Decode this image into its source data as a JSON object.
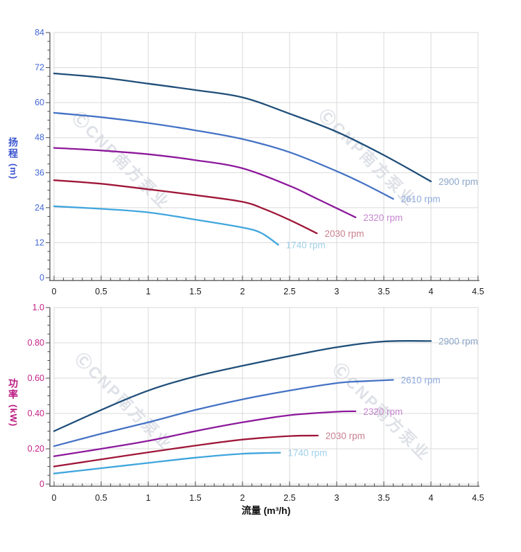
{
  "watermark": {
    "text": "ⒸCNP南方泵业",
    "color": "#aab3c2"
  },
  "axes": {
    "head_title": "扬程",
    "head_unit": "(m)",
    "head_title_color": "#3b55cf",
    "head_tick_color": "#4468d5",
    "power_title": "功率",
    "power_unit": "(kW)",
    "power_title_color": "#bb1880",
    "power_tick_color": "#c41f87",
    "flow_title": "流量 (m³/h)",
    "x_tick_color": "#1a1a1a",
    "grid_color": "#d9d9d9",
    "spine_color": "#474747"
  },
  "chart_data": [
    {
      "type": "line",
      "title": "",
      "xlabel": "流量 (m³/h)",
      "ylabel": "扬程 (m)",
      "xlim": [
        0,
        4.5
      ],
      "ylim": [
        0,
        84
      ],
      "grid": true,
      "legend_position": "curve-end-labels",
      "x_ticks": [
        0,
        0.5,
        1,
        1.5,
        2,
        2.5,
        3,
        3.5,
        4,
        4.5
      ],
      "x_tick_labels": [
        "0",
        "0.5",
        "1",
        "1.5",
        "2",
        "2.5",
        "3",
        "3.5",
        "4",
        "4.5"
      ],
      "x_minor_step": 0.1,
      "y_ticks": [
        0,
        12,
        24,
        36,
        48,
        60,
        72,
        84
      ],
      "y_tick_labels": [
        "0",
        "12",
        "24",
        "36",
        "48",
        "60",
        "72",
        "84"
      ],
      "y_minor_step": 3,
      "y_tick_color": "#4468d5",
      "series": [
        {
          "name": "2900 rpm",
          "color": "#1f4e79",
          "label_color": "#8ba6c9",
          "points": [
            [
              0,
              70
            ],
            [
              0.5,
              68.6
            ],
            [
              1,
              66.5
            ],
            [
              1.5,
              64.3
            ],
            [
              2,
              61.8
            ],
            [
              2.5,
              56.2
            ],
            [
              3,
              50
            ],
            [
              3.5,
              42
            ],
            [
              4,
              33
            ]
          ]
        },
        {
          "name": "2610 rpm",
          "color": "#4472c4",
          "label_color": "#8fa9dc",
          "points": [
            [
              0,
              56.5
            ],
            [
              0.5,
              55
            ],
            [
              1,
              53
            ],
            [
              1.5,
              50.5
            ],
            [
              2,
              47.5
            ],
            [
              2.5,
              43
            ],
            [
              3,
              36.5
            ],
            [
              3.3,
              32
            ],
            [
              3.6,
              27
            ]
          ]
        },
        {
          "name": "2320 rpm",
          "color": "#8c189b",
          "label_color": "#c687cf",
          "points": [
            [
              0,
              44.5
            ],
            [
              0.5,
              43.6
            ],
            [
              1,
              42.3
            ],
            [
              1.5,
              40.3
            ],
            [
              2,
              37.5
            ],
            [
              2.5,
              31.5
            ],
            [
              2.75,
              27.7
            ],
            [
              3,
              23.8
            ],
            [
              3.2,
              20.7
            ]
          ]
        },
        {
          "name": "2030 rpm",
          "color": "#9e1638",
          "label_color": "#c9808f",
          "points": [
            [
              0,
              33.4
            ],
            [
              0.5,
              32.2
            ],
            [
              1,
              30.3
            ],
            [
              1.5,
              28.3
            ],
            [
              2,
              26
            ],
            [
              2.25,
              23.3
            ],
            [
              2.5,
              19.8
            ],
            [
              2.79,
              15.2
            ]
          ]
        },
        {
          "name": "1740 rpm",
          "color": "#3fa5dd",
          "label_color": "#9fd0ea",
          "points": [
            [
              0,
              24.5
            ],
            [
              0.5,
              23.6
            ],
            [
              1,
              22.4
            ],
            [
              1.5,
              19.9
            ],
            [
              2,
              17.2
            ],
            [
              2.2,
              15.3
            ],
            [
              2.38,
              11.3
            ]
          ]
        }
      ]
    },
    {
      "type": "line",
      "title": "",
      "xlabel": "流量 (m³/h)",
      "ylabel": "功率 (kW)",
      "xlim": [
        0,
        4.5
      ],
      "ylim": [
        0,
        1.0
      ],
      "grid": true,
      "legend_position": "curve-end-labels",
      "x_ticks": [
        0,
        0.5,
        1,
        1.5,
        2,
        2.5,
        3,
        3.5,
        4,
        4.5
      ],
      "x_tick_labels": [
        "0",
        "0.5",
        "1",
        "1.5",
        "2",
        "2.5",
        "3",
        "3.5",
        "4",
        "4.5"
      ],
      "x_minor_step": 0.1,
      "y_ticks": [
        0,
        0.2,
        0.4,
        0.6,
        0.8,
        1.0
      ],
      "y_tick_labels": [
        "0",
        "0.20",
        "0.40",
        "0.60",
        "0.80",
        "1.0"
      ],
      "y_minor_step": 0.05,
      "y_tick_color": "#c41f87",
      "series": [
        {
          "name": "2900 rpm",
          "color": "#1f4e79",
          "label_color": "#8ba6c9",
          "points": [
            [
              0,
              0.3
            ],
            [
              0.5,
              0.42
            ],
            [
              1,
              0.53
            ],
            [
              1.5,
              0.61
            ],
            [
              2,
              0.67
            ],
            [
              2.5,
              0.725
            ],
            [
              3,
              0.775
            ],
            [
              3.5,
              0.808
            ],
            [
              4,
              0.81
            ]
          ]
        },
        {
          "name": "2610 rpm",
          "color": "#4472c4",
          "label_color": "#8fa9dc",
          "points": [
            [
              0,
              0.215
            ],
            [
              0.5,
              0.285
            ],
            [
              1,
              0.35
            ],
            [
              1.5,
              0.42
            ],
            [
              2,
              0.48
            ],
            [
              2.5,
              0.53
            ],
            [
              3,
              0.572
            ],
            [
              3.3,
              0.583
            ],
            [
              3.6,
              0.59
            ]
          ]
        },
        {
          "name": "2320 rpm",
          "color": "#8c189b",
          "label_color": "#c687cf",
          "points": [
            [
              0,
              0.158
            ],
            [
              0.5,
              0.2
            ],
            [
              1,
              0.245
            ],
            [
              1.5,
              0.3
            ],
            [
              2,
              0.35
            ],
            [
              2.5,
              0.39
            ],
            [
              3,
              0.41
            ],
            [
              3.2,
              0.412
            ]
          ]
        },
        {
          "name": "2030 rpm",
          "color": "#9e1638",
          "label_color": "#c9808f",
          "points": [
            [
              0,
              0.1
            ],
            [
              0.5,
              0.14
            ],
            [
              1,
              0.18
            ],
            [
              1.5,
              0.218
            ],
            [
              2,
              0.252
            ],
            [
              2.5,
              0.272
            ],
            [
              2.8,
              0.275
            ]
          ]
        },
        {
          "name": "1740 rpm",
          "color": "#3fa5dd",
          "label_color": "#9fd0ea",
          "points": [
            [
              0,
              0.06
            ],
            [
              0.5,
              0.09
            ],
            [
              1,
              0.12
            ],
            [
              1.5,
              0.15
            ],
            [
              2,
              0.172
            ],
            [
              2.4,
              0.178
            ]
          ]
        }
      ]
    }
  ]
}
